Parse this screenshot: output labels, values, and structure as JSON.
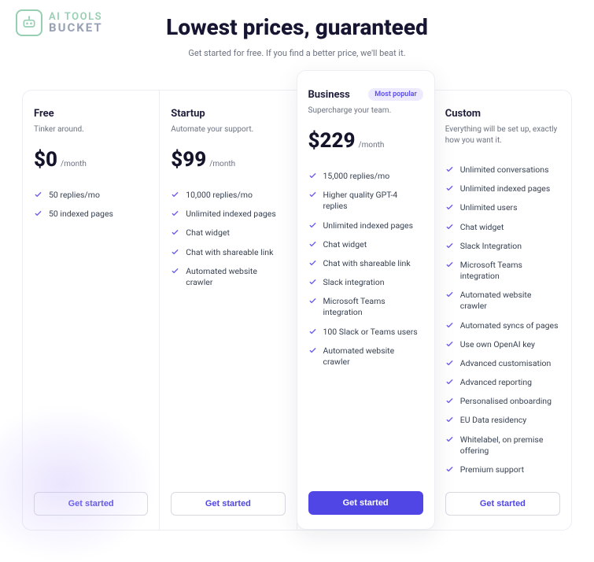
{
  "brand": {
    "line1": "AI TOOLS",
    "line2": "BUCKET",
    "mark_color": "#97cfb3",
    "text2_color": "#98a1b3"
  },
  "hero": {
    "title": "Lowest prices, guaranteed",
    "subtitle": "Get started for free. If you find a better price, we'll beat it."
  },
  "colors": {
    "accent": "#4f46e5",
    "check": "#6d5ef0",
    "badge_bg": "#edeaff",
    "badge_text": "#5b4df0",
    "border": "#eceef3",
    "muted": "#6b7280"
  },
  "cta_label": "Get started",
  "badge_label": "Most popular",
  "price_period": "/month",
  "plans": [
    {
      "key": "free",
      "name": "Free",
      "tagline": "Tinker around.",
      "price": "$0",
      "featured": false,
      "features": [
        "50 replies/mo",
        "50 indexed pages"
      ]
    },
    {
      "key": "startup",
      "name": "Startup",
      "tagline": "Automate your support.",
      "price": "$99",
      "featured": false,
      "features": [
        "10,000 replies/mo",
        "Unlimited indexed pages",
        "Chat widget",
        "Chat with shareable link",
        "Automated website crawler"
      ]
    },
    {
      "key": "business",
      "name": "Business",
      "tagline": "Supercharge your team.",
      "price": "$229",
      "featured": true,
      "features": [
        "15,000 replies/mo",
        "Higher quality GPT-4 replies",
        "Unlimited indexed pages",
        "Chat widget",
        "Chat with shareable link",
        "Slack integration",
        "Microsoft Teams integration",
        "100 Slack or Teams users",
        "Automated website crawler"
      ]
    },
    {
      "key": "custom",
      "name": "Custom",
      "tagline": "Everything will be set up, exactly how you want it.",
      "price": "",
      "featured": false,
      "features": [
        "Unlimited conversations",
        "Unlimited indexed pages",
        "Unlimited users",
        "Chat widget",
        "Slack Integration",
        "Microsoft Teams integration",
        "Automated website crawler",
        "Automated syncs of pages",
        "Use own OpenAI key",
        "Advanced customisation",
        "Advanced reporting",
        "Personalised onboarding",
        "EU Data residency",
        "Whitelabel, on premise offering",
        "Premium support"
      ]
    }
  ]
}
